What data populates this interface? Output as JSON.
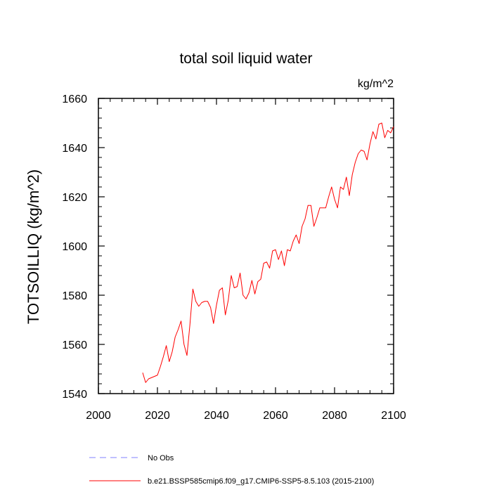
{
  "chart_data": {
    "type": "line",
    "title": "total soil liquid water",
    "units_label": "kg/m^2",
    "ylabel": "TOTSOILLIQ  (kg/m^2)",
    "xlabel": "",
    "xlim": [
      2000,
      2100
    ],
    "ylim": [
      1540,
      1660
    ],
    "x_ticks": [
      2000,
      2020,
      2040,
      2060,
      2080,
      2100
    ],
    "y_ticks": [
      1540,
      1560,
      1580,
      1600,
      1620,
      1640,
      1660
    ],
    "x_minor_step": 4,
    "y_minor_step": 4,
    "grid": false,
    "legend_position": "bottom",
    "legend": [
      {
        "label": "No Obs",
        "color": "#8080ff",
        "style": "dashed"
      },
      {
        "label": "b.e21.BSSP585cmip6.f09_g17.CMIP6-SSP5-8.5.103 (2015-2100)",
        "color": "#ff0000",
        "style": "solid"
      }
    ],
    "series": [
      {
        "name": "b.e21.BSSP585cmip6.f09_g17.CMIP6-SSP5-8.5.103 (2015-2100)",
        "color": "#ff0000",
        "x": [
          2015,
          2016,
          2017,
          2018,
          2019,
          2020,
          2021,
          2022,
          2023,
          2024,
          2025,
          2026,
          2027,
          2028,
          2029,
          2030,
          2031,
          2032,
          2033,
          2034,
          2035,
          2036,
          2037,
          2038,
          2039,
          2040,
          2041,
          2042,
          2043,
          2044,
          2045,
          2046,
          2047,
          2048,
          2049,
          2050,
          2051,
          2052,
          2053,
          2054,
          2055,
          2056,
          2057,
          2058,
          2059,
          2060,
          2061,
          2062,
          2063,
          2064,
          2065,
          2066,
          2067,
          2068,
          2069,
          2070,
          2071,
          2072,
          2073,
          2074,
          2075,
          2076,
          2077,
          2078,
          2079,
          2080,
          2081,
          2082,
          2083,
          2084,
          2085,
          2086,
          2087,
          2088,
          2089,
          2090,
          2091,
          2092,
          2093,
          2094,
          2095,
          2096,
          2097,
          2098,
          2099,
          2100
        ],
        "values": [
          1548.5,
          1544.5,
          1546,
          1546.5,
          1547,
          1547.5,
          1551,
          1555,
          1559.5,
          1553,
          1557,
          1563,
          1566,
          1569.5,
          1560,
          1555.5,
          1568,
          1582.5,
          1577.5,
          1575.5,
          1577,
          1577.5,
          1577.5,
          1575,
          1568.5,
          1576,
          1582,
          1583,
          1572,
          1578,
          1588,
          1583,
          1583.5,
          1589,
          1580,
          1578.5,
          1581,
          1586,
          1580.5,
          1585.5,
          1586.5,
          1593,
          1593.5,
          1591,
          1598,
          1598.5,
          1594.5,
          1598,
          1592,
          1598.5,
          1598,
          1602,
          1604.5,
          1601,
          1608,
          1611,
          1616.5,
          1616.5,
          1608,
          1611.5,
          1615.5,
          1615.5,
          1615.5,
          1620,
          1624,
          1619,
          1615.5,
          1624,
          1623,
          1628,
          1620.5,
          1629,
          1634,
          1637.5,
          1639,
          1638.5,
          1635,
          1641.5,
          1646.5,
          1643.5,
          1649.5,
          1650,
          1644,
          1647,
          1646,
          1648.5
        ]
      }
    ]
  }
}
